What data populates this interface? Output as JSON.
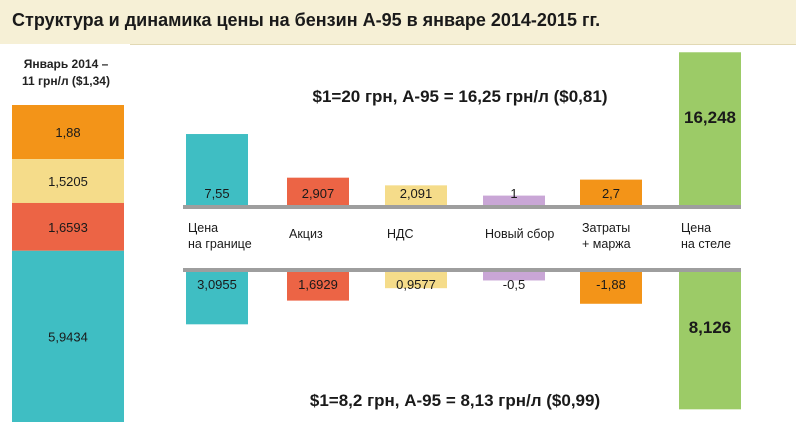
{
  "title": "Структура и динамика цены на бензин А-95 в январе 2014-2015 гг.",
  "left_panel": {
    "header_line1": "Январь 2014 –",
    "header_line2": "11 грн/л ($1,34)"
  },
  "top_note": "$1=20 грн, А-95 = 16,25 грн/л ($0,81)",
  "bottom_note": "$1=8,2 грн, А-95 = 8,13 грн/л ($0,99)",
  "colors": {
    "teal": "#3fbec3",
    "red": "#ec6445",
    "yellow": "#f5dc8a",
    "purple": "#c9a6d6",
    "orange": "#f39418",
    "green": "#9ccb67",
    "axis": "#9e9e9e"
  },
  "chart_data": [
    {
      "type": "bar",
      "stacked": true,
      "title": "Январь 2014 – 11 грн/л ($1,34)",
      "segments": [
        {
          "label": "1,88",
          "value": 1.88,
          "color": "orange"
        },
        {
          "label": "1,5205",
          "value": 1.5205,
          "color": "yellow"
        },
        {
          "label": "1,6593",
          "value": 1.6593,
          "color": "red"
        },
        {
          "label": "5,9434",
          "value": 5.9434,
          "color": "teal"
        }
      ]
    },
    {
      "type": "bar",
      "categories": [
        "Цена\nна границе",
        "Акциз",
        "НДС",
        "Новый сбор",
        "Затраты\n+ маржа",
        "Цена\nна стеле"
      ],
      "colors": [
        "teal",
        "red",
        "yellow",
        "purple",
        "orange",
        "green"
      ],
      "series": [
        {
          "annotation": "$1=20 грн, А-95 = 16,25 грн/л ($0,81)",
          "values": [
            7.55,
            2.907,
            2.091,
            1,
            2.7,
            16.248
          ],
          "labels": [
            "7,55",
            "2,907",
            "2,091",
            "1",
            "2,7",
            "16,248"
          ]
        },
        {
          "annotation": "$1=8,2 грн, А-95 = 8,13 грн/л ($0,99)",
          "values": [
            3.0955,
            1.6929,
            0.9577,
            -0.5,
            -1.88,
            8.126
          ],
          "labels": [
            "3,0955",
            "1,6929",
            "0,9577",
            "-0,5",
            "-1,88",
            "8,126"
          ]
        }
      ]
    }
  ]
}
